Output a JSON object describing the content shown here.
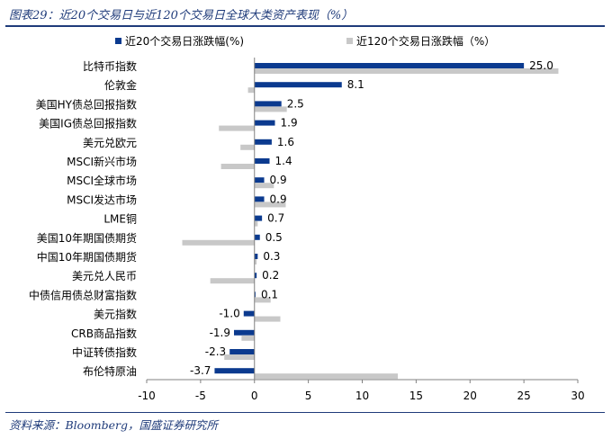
{
  "figure": {
    "title": "图表29：近20个交易日与近120个交易日全球大类资产表现（%）",
    "source": "资料来源：Bloomberg，国盛证券研究所"
  },
  "chart_data": {
    "type": "bar",
    "orientation": "horizontal",
    "categories": [
      "比特币指数",
      "伦敦金",
      "美国HY债总回报指数",
      "美国IG债总回报指数",
      "美元兑欧元",
      "MSCI新兴市场",
      "MSCI全球市场",
      "MSCI发达市场",
      "LME铜",
      "美国10年期国债期货",
      "中国10年期国债期货",
      "美元兑人民币",
      "中债信用债总财富指数",
      "美元指数",
      "CRB商品指数",
      "中证转债指数",
      "布伦特原油"
    ],
    "series": [
      {
        "name": "近20个交易日涨跌幅(%)",
        "color": "#0b3a8f",
        "values": [
          25.0,
          8.1,
          2.5,
          1.9,
          1.6,
          1.4,
          0.9,
          0.9,
          0.7,
          0.5,
          0.3,
          0.2,
          0.1,
          -1.0,
          -1.9,
          -2.3,
          -3.7
        ],
        "labels": [
          "25.0",
          "8.1",
          "2.5",
          "1.9",
          "1.6",
          "1.4",
          "0.9",
          "0.9",
          "0.7",
          "0.5",
          "0.3",
          "0.2",
          "0.1",
          "-1.0",
          "-1.9",
          "-2.3",
          "-3.7"
        ]
      },
      {
        "name": "近120个交易日涨跌幅（%）",
        "color": "#c8c8c8",
        "values": [
          28.2,
          -0.6,
          3.0,
          -3.3,
          -1.3,
          -3.1,
          1.8,
          2.9,
          0.3,
          -6.7,
          0.2,
          -4.1,
          1.5,
          2.4,
          -1.2,
          -2.8,
          13.3
        ]
      }
    ],
    "xlim": [
      -10,
      30
    ],
    "xticks": [
      -10,
      -5,
      0,
      5,
      10,
      15,
      20,
      25,
      30
    ],
    "legend_position": "top",
    "grid": false
  }
}
